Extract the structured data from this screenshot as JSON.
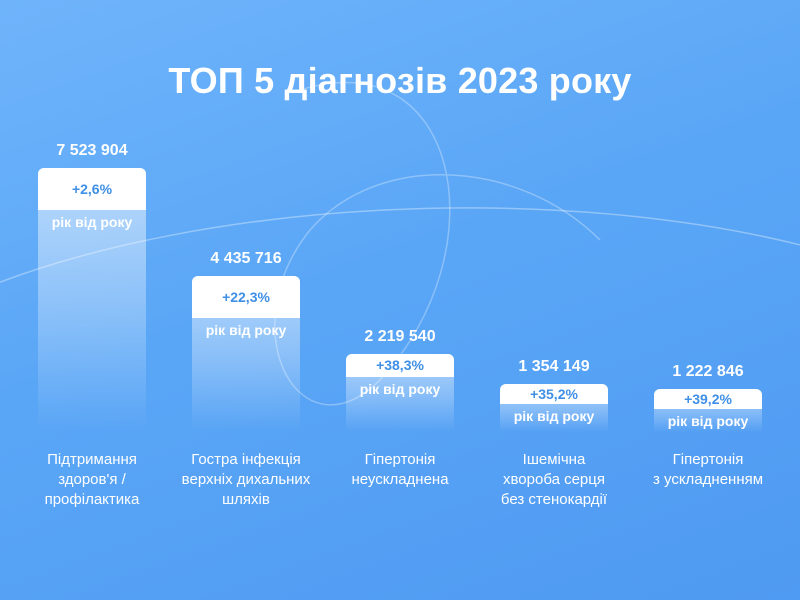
{
  "title": "ТОП 5 діагнозів 2023 року",
  "chart_data": {
    "type": "bar",
    "title": "ТОП 5 діагнозів 2023 року",
    "categories": [
      [
        "Підтримання",
        "здоров'я /",
        "профілактика"
      ],
      [
        "Гостра інфекція",
        "верхніх дихальних",
        "шляхів"
      ],
      [
        "Гіпертонія",
        "неускладнена"
      ],
      [
        "Ішемічна",
        "хвороба серця",
        "без стенокардії"
      ],
      [
        "Гіпертонія",
        "з ускладненням"
      ]
    ],
    "values": [
      7523904,
      4435716,
      2219540,
      1354149,
      1222846
    ],
    "value_labels": [
      "7 523 904",
      "4 435 716",
      "2 219 540",
      "1 354 149",
      "1 222 846"
    ],
    "changes": [
      "+2,6%",
      "+22,3%",
      "+38,3%",
      "+35,2%",
      "+39,2%"
    ],
    "change_caption": "рік від року",
    "grid": false,
    "legend": "none"
  },
  "colors": {
    "background": "#5aa6f6",
    "bar_cap": "#ffffff",
    "change_text": "#3f8fe6"
  }
}
